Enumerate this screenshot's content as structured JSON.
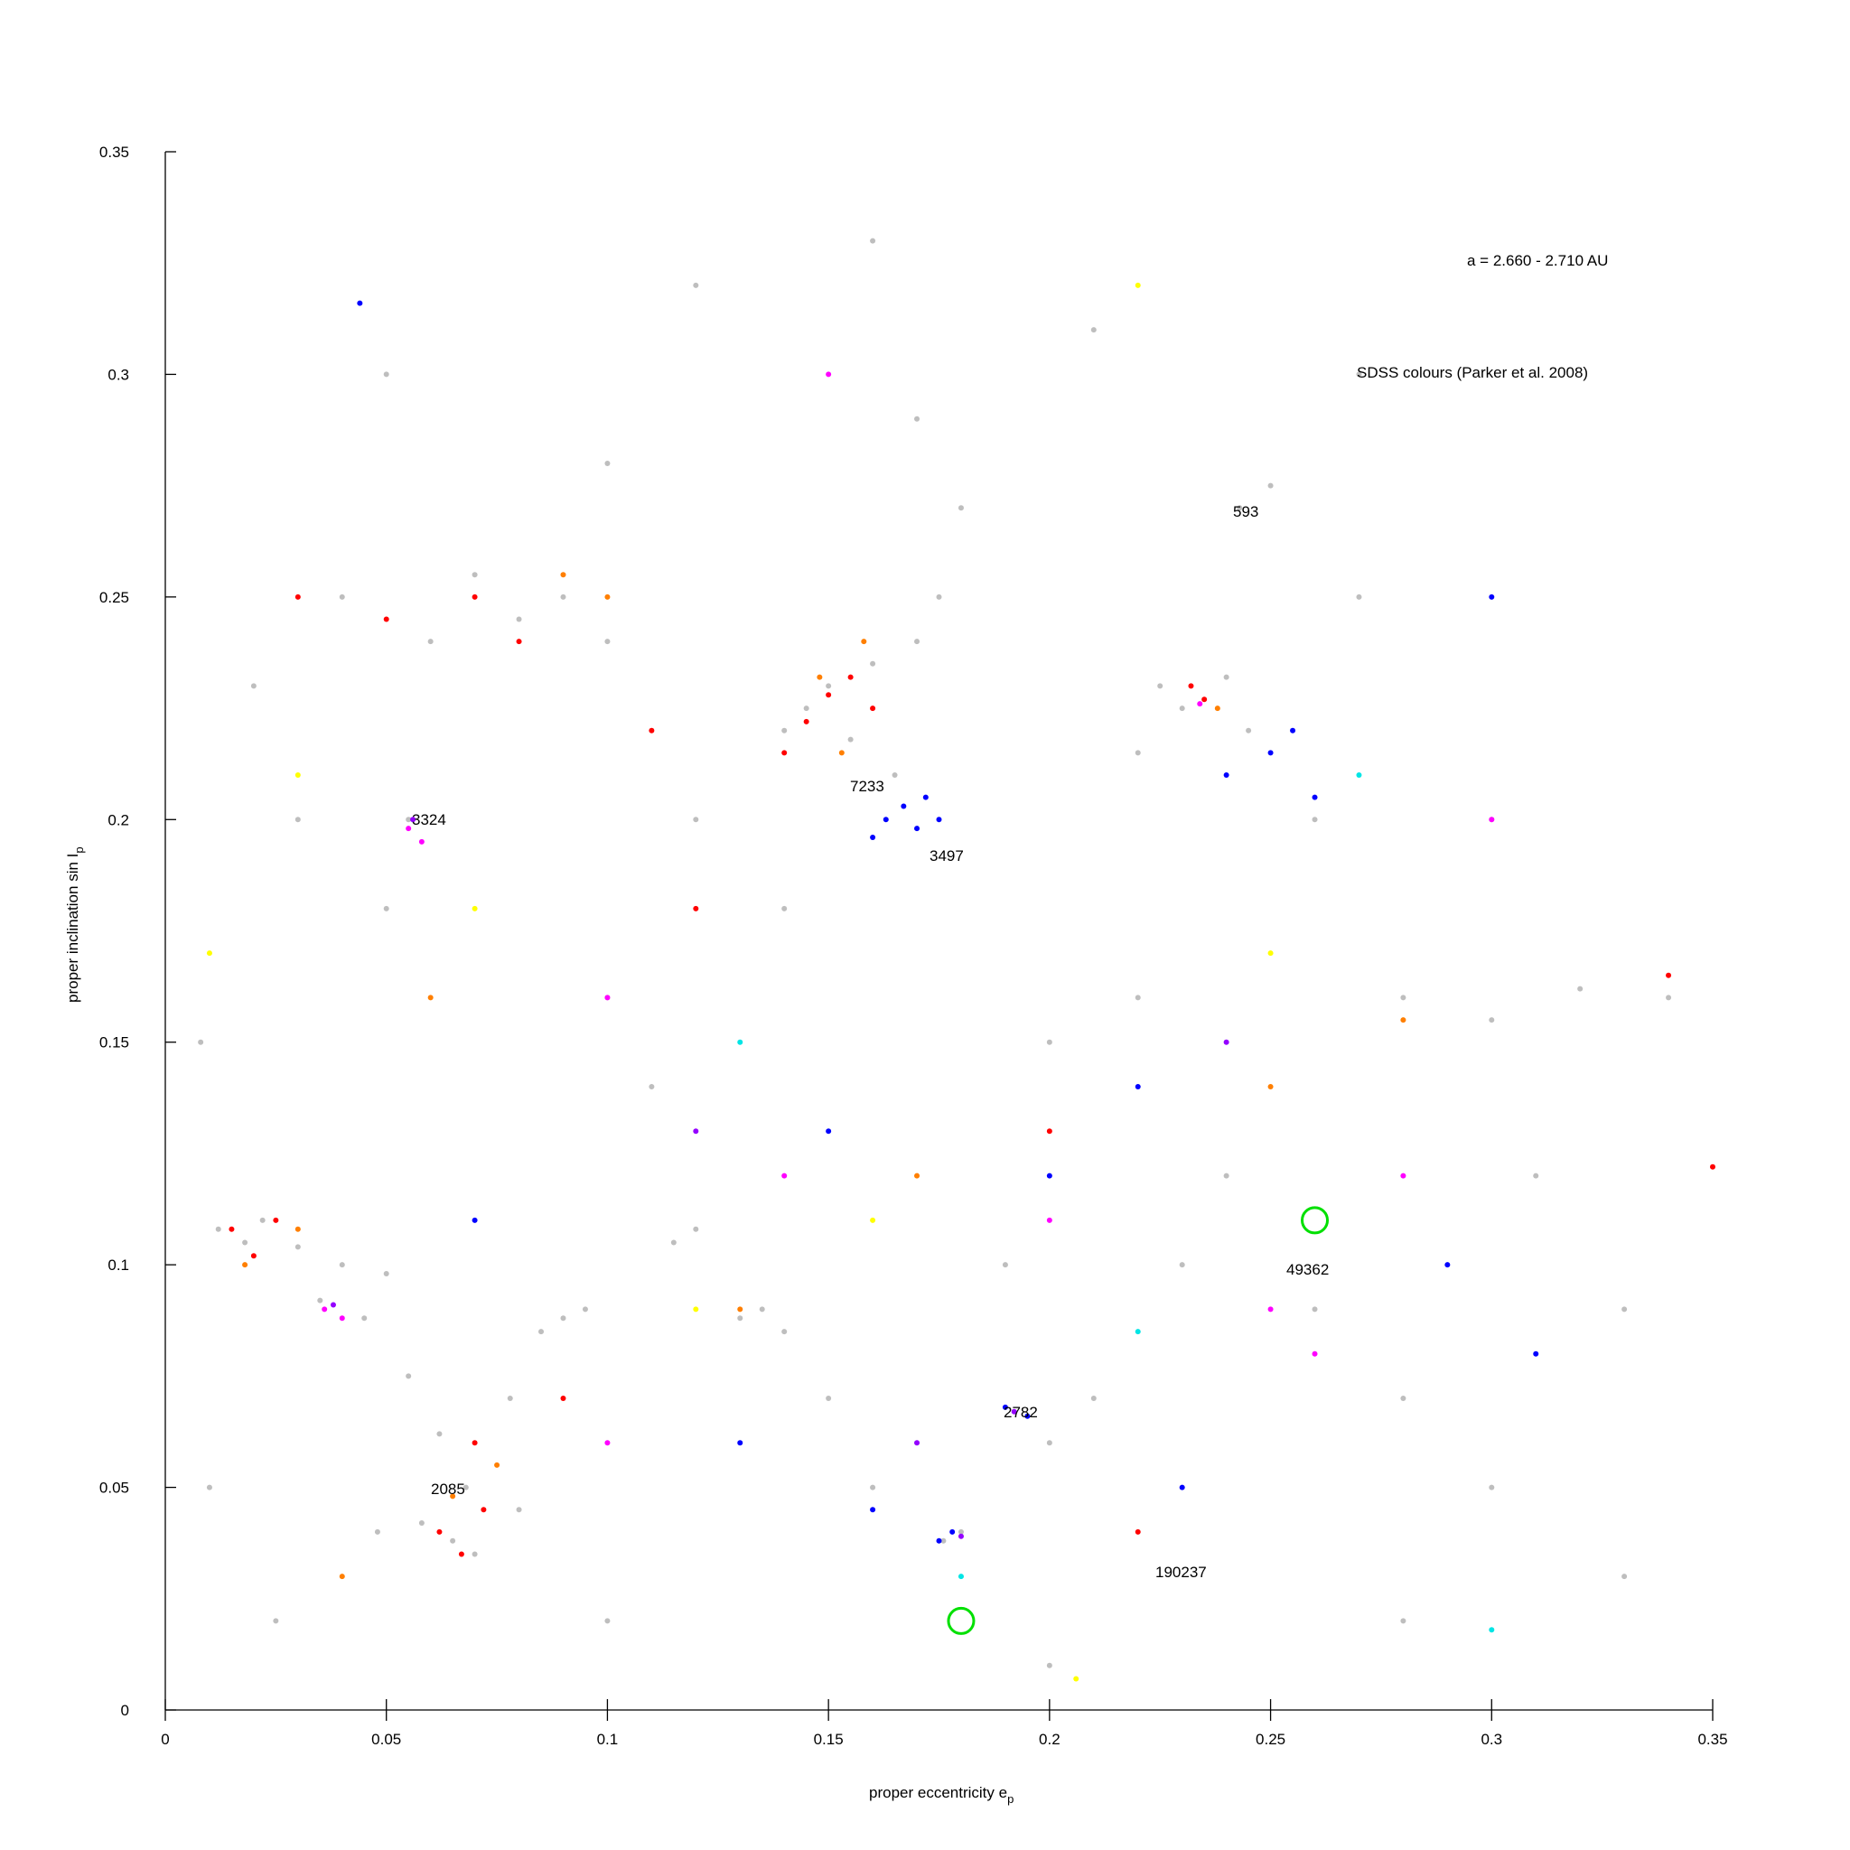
{
  "chart_data": {
    "type": "scatter",
    "xlabel": [
      "proper eccentricity e",
      "p"
    ],
    "ylabel": [
      "proper inclination sin I",
      "p"
    ],
    "annotations": [
      "a = 2.660 - 2.710 AU",
      "SDSS colours (Parker et al. 2008)",
      "593",
      "7233",
      "3497",
      "3324",
      "49362",
      "2782",
      "2085",
      "190237"
    ],
    "xlim": [
      0,
      0.35
    ],
    "ylim": [
      0,
      0.35
    ],
    "xticks": [
      0,
      0.05,
      0.1,
      0.15,
      0.2,
      0.25,
      0.3,
      0.35
    ],
    "yticks": [
      0,
      0.05,
      0.1,
      0.15,
      0.2,
      0.25,
      0.3,
      0.35
    ],
    "series": [
      {
        "color": "#bebebe",
        "marker": "dot",
        "x": [
          0.012,
          0.018,
          0.022,
          0.03,
          0.04,
          0.05,
          0.035,
          0.045,
          0.055,
          0.062,
          0.068,
          0.058,
          0.065,
          0.07,
          0.048,
          0.08,
          0.085,
          0.09,
          0.095,
          0.078,
          0.13,
          0.135,
          0.14,
          0.12,
          0.115,
          0.14,
          0.145,
          0.15,
          0.155,
          0.16,
          0.165,
          0.17,
          0.175,
          0.18,
          0.17,
          0.09,
          0.08,
          0.07,
          0.1,
          0.06,
          0.04,
          0.02,
          0.225,
          0.23,
          0.24,
          0.245,
          0.22,
          0.243,
          0.25,
          0.26,
          0.28,
          0.3,
          0.32,
          0.34,
          0.3,
          0.27,
          0.2,
          0.22,
          0.24,
          0.26,
          0.28,
          0.3,
          0.2,
          0.21,
          0.18,
          0.176,
          0.16,
          0.15,
          0.11,
          0.1,
          0.05,
          0.03,
          0.055,
          0.12,
          0.14,
          0.19,
          0.23,
          0.31,
          0.33,
          0.12,
          0.16,
          0.21,
          0.27,
          0.05,
          0.1,
          0.008,
          0.01,
          0.025,
          0.1,
          0.2,
          0.28,
          0.33
        ],
        "values": [
          0.108,
          0.105,
          0.11,
          0.104,
          0.1,
          0.098,
          0.092,
          0.088,
          0.075,
          0.062,
          0.05,
          0.042,
          0.038,
          0.035,
          0.04,
          0.045,
          0.085,
          0.088,
          0.09,
          0.07,
          0.088,
          0.09,
          0.085,
          0.108,
          0.105,
          0.22,
          0.225,
          0.23,
          0.218,
          0.235,
          0.21,
          0.24,
          0.25,
          0.27,
          0.29,
          0.25,
          0.245,
          0.255,
          0.24,
          0.24,
          0.25,
          0.23,
          0.23,
          0.225,
          0.232,
          0.22,
          0.215,
          0.27,
          0.275,
          0.2,
          0.16,
          0.155,
          0.162,
          0.16,
          0.2,
          0.25,
          0.15,
          0.16,
          0.12,
          0.09,
          0.07,
          0.05,
          0.06,
          0.07,
          0.04,
          0.038,
          0.05,
          0.07,
          0.14,
          0.16,
          0.18,
          0.2,
          0.2,
          0.2,
          0.18,
          0.1,
          0.1,
          0.12,
          0.09,
          0.32,
          0.33,
          0.31,
          0.3,
          0.3,
          0.28,
          0.15,
          0.05,
          0.02,
          0.02,
          0.01,
          0.02,
          0.03
        ]
      },
      {
        "color": "#ff0000",
        "marker": "dot",
        "x": [
          0.015,
          0.02,
          0.025,
          0.062,
          0.067,
          0.07,
          0.072,
          0.145,
          0.15,
          0.155,
          0.14,
          0.16,
          0.232,
          0.235,
          0.07,
          0.08,
          0.05,
          0.11,
          0.09,
          0.12,
          0.2,
          0.03,
          0.34,
          0.35,
          0.22
        ],
        "values": [
          0.108,
          0.102,
          0.11,
          0.04,
          0.035,
          0.06,
          0.045,
          0.222,
          0.228,
          0.232,
          0.215,
          0.225,
          0.23,
          0.227,
          0.25,
          0.24,
          0.245,
          0.22,
          0.07,
          0.18,
          0.13,
          0.25,
          0.165,
          0.122,
          0.04
        ]
      },
      {
        "color": "#ff7f00",
        "marker": "dot",
        "x": [
          0.018,
          0.03,
          0.065,
          0.075,
          0.148,
          0.153,
          0.158,
          0.238,
          0.09,
          0.1,
          0.13,
          0.06,
          0.17,
          0.25,
          0.28,
          0.04
        ],
        "values": [
          0.1,
          0.108,
          0.048,
          0.055,
          0.232,
          0.215,
          0.24,
          0.225,
          0.255,
          0.25,
          0.09,
          0.16,
          0.12,
          0.14,
          0.155,
          0.03
        ]
      },
      {
        "color": "#0000ff",
        "marker": "dot",
        "x": [
          0.163,
          0.167,
          0.17,
          0.172,
          0.16,
          0.175,
          0.19,
          0.195,
          0.178,
          0.175,
          0.24,
          0.25,
          0.255,
          0.26,
          0.2,
          0.22,
          0.15,
          0.13,
          0.16,
          0.29,
          0.31,
          0.044,
          0.3,
          0.23,
          0.07
        ],
        "values": [
          0.2,
          0.203,
          0.198,
          0.205,
          0.196,
          0.2,
          0.068,
          0.066,
          0.04,
          0.038,
          0.21,
          0.215,
          0.22,
          0.205,
          0.12,
          0.14,
          0.13,
          0.06,
          0.045,
          0.1,
          0.08,
          0.316,
          0.25,
          0.05,
          0.11
        ]
      },
      {
        "color": "#ff00ff",
        "marker": "dot",
        "x": [
          0.055,
          0.058,
          0.036,
          0.04,
          0.1,
          0.14,
          0.2,
          0.25,
          0.26,
          0.28,
          0.1,
          0.3,
          0.15,
          0.234
        ],
        "values": [
          0.198,
          0.195,
          0.09,
          0.088,
          0.16,
          0.12,
          0.11,
          0.09,
          0.08,
          0.12,
          0.06,
          0.2,
          0.3,
          0.226
        ]
      },
      {
        "color": "#9400ff",
        "marker": "dot",
        "x": [
          0.056,
          0.038,
          0.192,
          0.18,
          0.12,
          0.24,
          0.17
        ],
        "values": [
          0.2,
          0.091,
          0.067,
          0.039,
          0.13,
          0.15,
          0.06
        ]
      },
      {
        "color": "#ffff00",
        "marker": "dot",
        "x": [
          0.01,
          0.07,
          0.12,
          0.22,
          0.16,
          0.206,
          0.25,
          0.03
        ],
        "values": [
          0.17,
          0.18,
          0.09,
          0.32,
          0.11,
          0.007,
          0.17,
          0.21
        ]
      },
      {
        "color": "#00e5e5",
        "marker": "dot",
        "x": [
          0.13,
          0.18,
          0.3,
          0.22,
          0.27
        ],
        "values": [
          0.15,
          0.03,
          0.018,
          0.085,
          0.21
        ]
      },
      {
        "color": "#00e000",
        "marker": "open-circle",
        "x": [
          0.26,
          0.18
        ],
        "values": [
          0.11,
          0.02
        ]
      }
    ]
  }
}
